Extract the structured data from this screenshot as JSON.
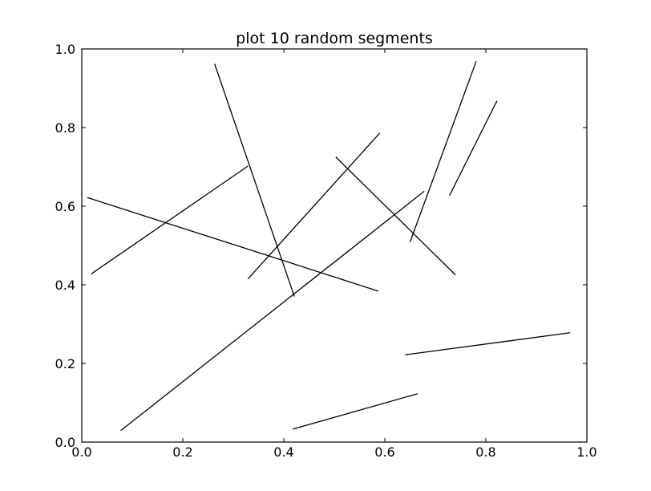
{
  "chart_data": {
    "type": "line",
    "title": "plot 10 random segments",
    "xlabel": "",
    "ylabel": "",
    "xlim": [
      0.0,
      1.0
    ],
    "ylim": [
      0.0,
      1.0
    ],
    "grid": false,
    "line_color": "#000000",
    "x_ticks": [
      "0.0",
      "0.2",
      "0.4",
      "0.6",
      "0.8",
      "1.0"
    ],
    "y_ticks": [
      "0.0",
      "0.2",
      "0.4",
      "0.6",
      "0.8",
      "1.0"
    ],
    "segments": [
      {
        "x": [
          0.263,
          0.421
        ],
        "y": [
          0.962,
          0.37
        ]
      },
      {
        "x": [
          0.019,
          0.329
        ],
        "y": [
          0.428,
          0.702
        ]
      },
      {
        "x": [
          0.011,
          0.587
        ],
        "y": [
          0.622,
          0.384
        ]
      },
      {
        "x": [
          0.329,
          0.59
        ],
        "y": [
          0.415,
          0.786
        ]
      },
      {
        "x": [
          0.503,
          0.74
        ],
        "y": [
          0.725,
          0.425
        ]
      },
      {
        "x": [
          0.077,
          0.678
        ],
        "y": [
          0.029,
          0.638
        ]
      },
      {
        "x": [
          0.65,
          0.781
        ],
        "y": [
          0.509,
          0.969
        ]
      },
      {
        "x": [
          0.728,
          0.822
        ],
        "y": [
          0.627,
          0.868
        ]
      },
      {
        "x": [
          0.64,
          0.967
        ],
        "y": [
          0.222,
          0.278
        ]
      },
      {
        "x": [
          0.418,
          0.665
        ],
        "y": [
          0.033,
          0.123
        ]
      }
    ]
  }
}
